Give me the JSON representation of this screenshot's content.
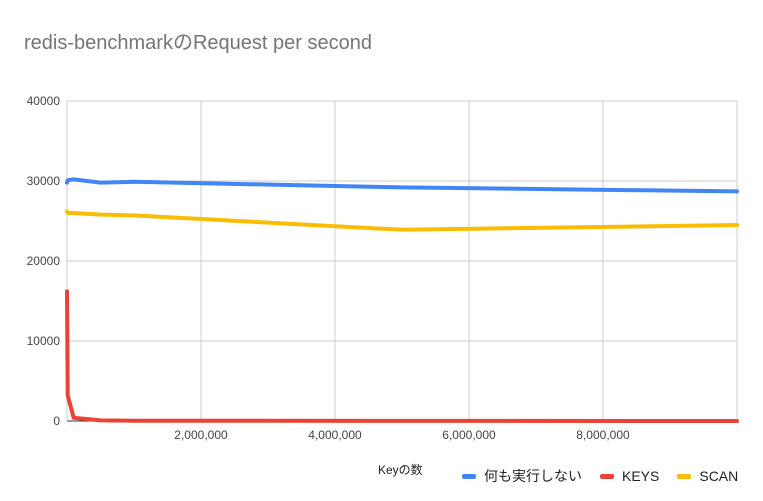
{
  "chart_data": {
    "type": "line",
    "title": "redis-benchmarkのRequest per second",
    "xlabel": "Keyの数",
    "ylabel": "",
    "xlim": [
      0,
      10000000
    ],
    "ylim": [
      0,
      40000
    ],
    "xticks": [
      2000000,
      4000000,
      6000000,
      8000000
    ],
    "xtick_labels": [
      "2,000,000",
      "4,000,000",
      "6,000,000",
      "8,000,000"
    ],
    "yticks": [
      0,
      10000,
      20000,
      30000,
      40000
    ],
    "ytick_labels": [
      "0",
      "10000",
      "20000",
      "30000",
      "40000"
    ],
    "grid": true,
    "legend_position": "bottom-right",
    "series": [
      {
        "name": "何も実行しない",
        "color": "#4285f4",
        "x": [
          0,
          10000,
          100000,
          500000,
          1000000,
          5000000,
          10000000
        ],
        "y": [
          29800,
          30100,
          30200,
          29800,
          29900,
          29200,
          28700
        ]
      },
      {
        "name": "KEYS",
        "color": "#ea4335",
        "x": [
          0,
          10000,
          100000,
          500000,
          1000000,
          5000000,
          10000000
        ],
        "y": [
          16200,
          3200,
          400,
          80,
          40,
          10,
          5
        ]
      },
      {
        "name": "SCAN",
        "color": "#fbbc04",
        "x": [
          0,
          10000,
          100000,
          500000,
          1000000,
          5000000,
          10000000
        ],
        "y": [
          26200,
          26000,
          26000,
          25800,
          25700,
          23900,
          24500
        ]
      }
    ]
  }
}
